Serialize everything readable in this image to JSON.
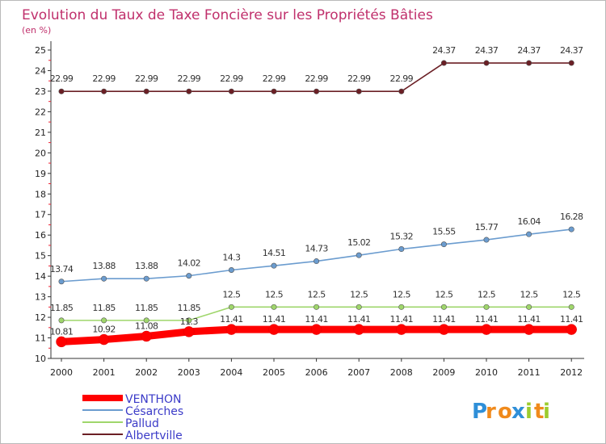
{
  "chart_data": {
    "type": "line",
    "title": "Evolution du Taux de Taxe Foncière sur les Propriétés Bâties",
    "subtitle": "(en %)",
    "xlabel": "",
    "ylabel": "(en %)",
    "ylim": [
      10,
      25
    ],
    "yticks": [
      "10",
      "11",
      "12",
      "13",
      "14",
      "15",
      "16",
      "17",
      "18",
      "19",
      "20",
      "21",
      "22",
      "23",
      "24",
      "25"
    ],
    "categories": [
      "2000",
      "2001",
      "2002",
      "2003",
      "2004",
      "2005",
      "2006",
      "2007",
      "2008",
      "2009",
      "2010",
      "2011",
      "2012"
    ],
    "series": [
      {
        "name": "VENTHON",
        "color": "#ff0000",
        "values": [
          10.81,
          10.92,
          11.08,
          11.3,
          11.41,
          11.41,
          11.41,
          11.41,
          11.41,
          11.41,
          11.41,
          11.41,
          11.41
        ],
        "labels": [
          "10.81",
          "10.92",
          "11.08",
          "11.3",
          "11.41",
          "11.41",
          "11.41",
          "11.41",
          "11.41",
          "11.41",
          "11.41",
          "11.41",
          "11.41"
        ]
      },
      {
        "name": "Césarches",
        "color": "#6b9ccf",
        "values": [
          13.74,
          13.88,
          13.88,
          14.02,
          14.3,
          14.51,
          14.73,
          15.02,
          15.32,
          15.55,
          15.77,
          16.04,
          16.28
        ],
        "labels": [
          "13.74",
          "13.88",
          "13.88",
          "14.02",
          "14.3",
          "14.51",
          "14.73",
          "15.02",
          "15.32",
          "15.55",
          "15.77",
          "16.04",
          "16.28"
        ]
      },
      {
        "name": "Pallud",
        "color": "#9fd66b",
        "values": [
          11.85,
          11.85,
          11.85,
          11.85,
          12.5,
          12.5,
          12.5,
          12.5,
          12.5,
          12.5,
          12.5,
          12.5,
          12.5
        ],
        "labels": [
          "11.85",
          "11.85",
          "11.85",
          "11.85",
          "12.5",
          "12.5",
          "12.5",
          "12.5",
          "12.5",
          "12.5",
          "12.5",
          "12.5",
          "12.5"
        ]
      },
      {
        "name": "Albertville",
        "color": "#6b1f25",
        "values": [
          22.99,
          22.99,
          22.99,
          22.99,
          22.99,
          22.99,
          22.99,
          22.99,
          22.99,
          24.37,
          24.37,
          24.37,
          24.37
        ],
        "labels": [
          "22.99",
          "22.99",
          "22.99",
          "22.99",
          "22.99",
          "22.99",
          "22.99",
          "22.99",
          "22.99",
          "24.37",
          "24.37",
          "24.37",
          "24.37"
        ]
      }
    ],
    "legend_position": "bottom-left",
    "grid": false
  },
  "logo": {
    "letters": [
      "P",
      "r",
      "o",
      "x",
      "i",
      "t",
      "i"
    ],
    "colors": [
      "#2f8fd8",
      "#f08a1c",
      "#f08a1c",
      "#2f8fd8",
      "#9ccc2e",
      "#f08a1c",
      "#9ccc2e"
    ]
  }
}
